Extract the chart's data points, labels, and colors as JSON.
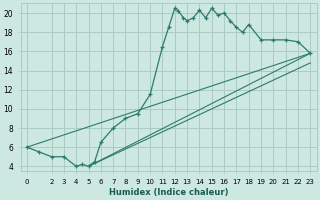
{
  "xlabel": "Humidex (Indice chaleur)",
  "bg_color": "#cce8e0",
  "grid_color": "#aaccc4",
  "line_color": "#2d7a6e",
  "xlim": [
    -0.5,
    23.5
  ],
  "ylim": [
    3.5,
    21.0
  ],
  "xticks": [
    0,
    2,
    3,
    4,
    5,
    6,
    7,
    8,
    9,
    10,
    11,
    12,
    13,
    14,
    15,
    16,
    17,
    18,
    19,
    20,
    21,
    22,
    23
  ],
  "yticks": [
    4,
    6,
    8,
    10,
    12,
    14,
    16,
    18,
    20
  ],
  "main_x": [
    0,
    1,
    2,
    3,
    4,
    4.5,
    5,
    5.5,
    6,
    7,
    8,
    9,
    10,
    11,
    11.5,
    12,
    12.3,
    12.7,
    13,
    13.5,
    14,
    14.5,
    15,
    15.5,
    16,
    16.5,
    17,
    17.5,
    18,
    19,
    20,
    21,
    22,
    23
  ],
  "main_y": [
    6,
    5.5,
    5,
    5,
    4,
    4.2,
    4,
    4.5,
    6.5,
    8.0,
    9.0,
    9.5,
    11.5,
    16.5,
    18.5,
    20.5,
    20.2,
    19.5,
    19.2,
    19.5,
    20.3,
    19.5,
    20.5,
    19.8,
    20.0,
    19.2,
    18.5,
    18.0,
    18.8,
    17.2,
    17.2,
    17.2,
    17.0,
    15.8
  ],
  "line2_x": [
    0,
    23
  ],
  "line2_y": [
    6,
    15.8
  ],
  "line3_x": [
    5,
    23
  ],
  "line3_y": [
    4,
    15.8
  ],
  "line4_x": [
    5,
    23
  ],
  "line4_y": [
    4,
    14.8
  ]
}
